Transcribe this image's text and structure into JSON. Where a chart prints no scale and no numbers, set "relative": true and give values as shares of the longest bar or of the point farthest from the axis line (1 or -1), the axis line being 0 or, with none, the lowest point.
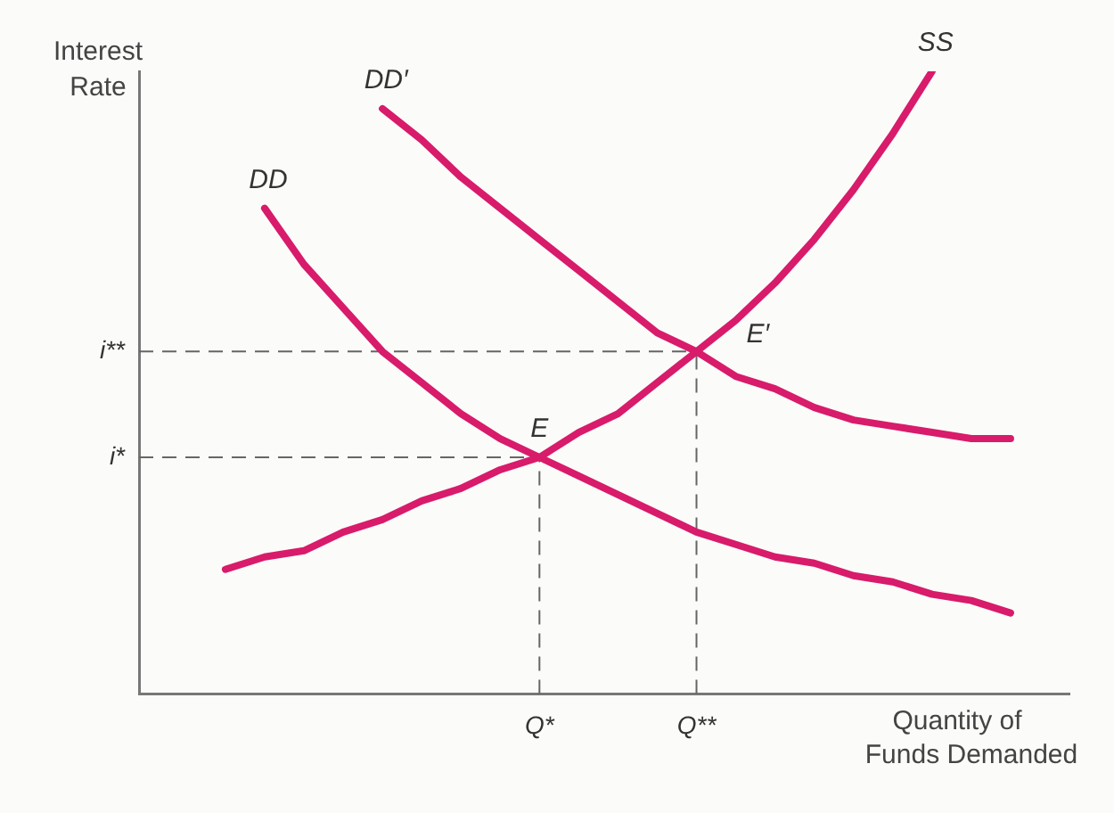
{
  "chart_data": {
    "type": "line",
    "relative": true,
    "xlabel": "Quantity of\nFunds Demanded",
    "ylabel": "Interest Rate",
    "categories": [
      null,
      null,
      null,
      null,
      null,
      null,
      null,
      null,
      "Q*",
      null,
      null,
      null,
      "Q**",
      null,
      null,
      null,
      null,
      null,
      null,
      null,
      null
    ],
    "grid": false,
    "legend": false,
    "marker": "none",
    "line_style": "solid",
    "series": [
      {
        "name": "SS",
        "color": "#d81b6a",
        "values": [
          0.2,
          0.22,
          0.23,
          0.26,
          0.28,
          0.31,
          0.33,
          0.36,
          0.38,
          0.42,
          0.45,
          0.5,
          0.55,
          0.6,
          0.66,
          0.73,
          0.81,
          0.9,
          1,
          null,
          null
        ]
      },
      {
        "name": "DD",
        "color": "#d81b6a",
        "values": [
          null,
          0.78,
          0.69,
          0.62,
          0.55,
          0.5,
          0.45,
          0.41,
          0.38,
          0.35,
          0.32,
          0.29,
          0.26,
          0.24,
          0.22,
          0.21,
          0.19,
          0.18,
          0.16,
          0.15,
          0.13
        ]
      },
      {
        "name": "DD′",
        "color": "#d81b6a",
        "values": [
          null,
          null,
          null,
          null,
          0.94,
          0.89,
          0.83,
          0.78,
          0.73,
          0.68,
          0.63,
          0.58,
          0.55,
          0.51,
          0.49,
          0.46,
          0.44,
          0.43,
          0.42,
          0.41,
          0.41
        ]
      }
    ],
    "ref_lines": [
      {
        "axis": "y",
        "value": 0.55,
        "label": "i**",
        "color": "#666666",
        "line_style": "dashed"
      },
      {
        "axis": "y",
        "value": 0.38,
        "label": "i*",
        "color": "#666666",
        "line_style": "dashed"
      },
      {
        "axis": "x",
        "value": "Q*",
        "color": "#666666",
        "line_style": "dashed"
      },
      {
        "axis": "x",
        "value": "Q**",
        "color": "#666666",
        "line_style": "dashed"
      }
    ],
    "annotations": [
      {
        "text": "E",
        "x": "Q*",
        "y": 0.38
      },
      {
        "text": "E′",
        "x": "Q**",
        "y": 0.55
      }
    ]
  }
}
